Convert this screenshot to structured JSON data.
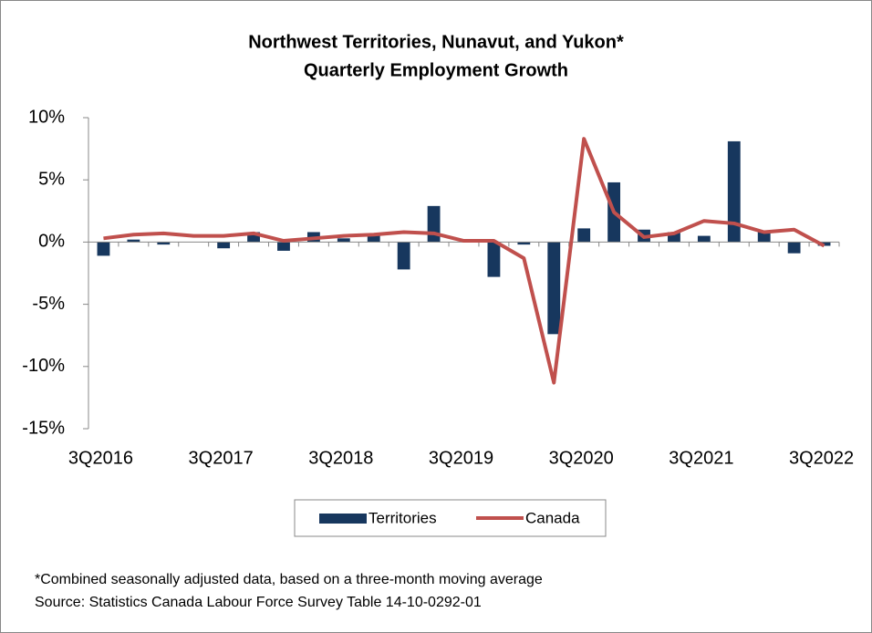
{
  "chart_data": {
    "type": "bar_line",
    "title": "Northwest Territories, Nunavut, and Yukon*",
    "subtitle": "Quarterly Employment Growth",
    "categories": [
      "3Q2016",
      null,
      null,
      null,
      "3Q2017",
      null,
      null,
      null,
      "3Q2018",
      null,
      null,
      null,
      "3Q2019",
      null,
      null,
      null,
      "3Q2020",
      null,
      null,
      null,
      "3Q2021",
      null,
      null,
      null,
      "3Q2022"
    ],
    "series": [
      {
        "name": "Territories",
        "type": "bar",
        "color": "#17375e",
        "values": [
          -1.1,
          0.2,
          -0.2,
          0,
          -0.5,
          0.8,
          -0.7,
          0.8,
          0.3,
          0.7,
          -2.2,
          2.9,
          0,
          -2.8,
          -0.2,
          -7.4,
          1.1,
          4.8,
          1.0,
          0.8,
          0.5,
          8.1,
          0.8,
          -0.9,
          -0.3
        ]
      },
      {
        "name": "Canada",
        "type": "line",
        "color": "#c0504d",
        "values": [
          0.3,
          0.6,
          0.7,
          0.5,
          0.5,
          0.7,
          0.1,
          0.3,
          0.5,
          0.6,
          0.8,
          0.7,
          0.1,
          0.1,
          -1.3,
          -11.3,
          8.3,
          2.4,
          0.4,
          0.7,
          1.7,
          1.5,
          0.8,
          1.0,
          -0.3
        ]
      }
    ],
    "ylim": [
      -15,
      10
    ],
    "yticks": [
      {
        "value": -15,
        "label": "-15%"
      },
      {
        "value": -10,
        "label": "-10%"
      },
      {
        "value": -5,
        "label": "-5%"
      },
      {
        "value": 0,
        "label": "0%"
      },
      {
        "value": 5,
        "label": "5%"
      },
      {
        "value": 10,
        "label": "10%"
      }
    ],
    "grid": false,
    "legend": "bottom",
    "notes": [
      "*Combined seasonally adjusted data, based on a three-month moving average",
      "Source: Statistics Canada Labour Force Survey Table 14-10-0292-01"
    ]
  }
}
